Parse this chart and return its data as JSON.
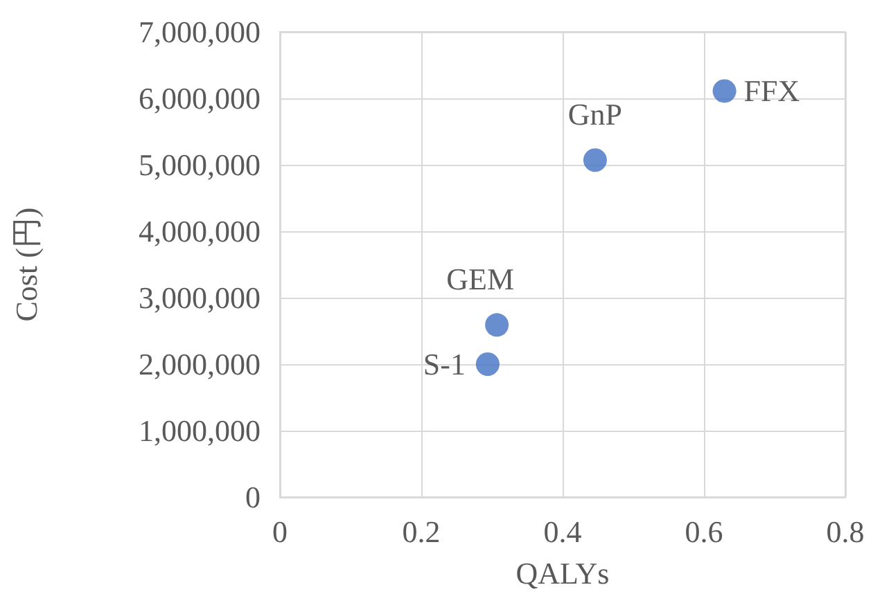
{
  "chart_data": {
    "type": "scatter",
    "xlabel": "QALYs",
    "ylabel": "Cost (円)",
    "x": [
      0.294,
      0.307,
      0.446,
      0.629
    ],
    "values": [
      2000000,
      2590000,
      5070000,
      6110000
    ],
    "color": "#4472c4",
    "xlim": [
      0,
      0.8
    ],
    "xticks": [
      0,
      0.2,
      0.4,
      0.6,
      0.8
    ],
    "ylim": [
      0,
      7000000
    ],
    "yticks": [
      0,
      {
        "value": 1000000,
        "label": "1,000,000"
      },
      {
        "value": 2000000,
        "label": "2,000,000"
      },
      {
        "value": 3000000,
        "label": "3,000,000"
      },
      {
        "value": 4000000,
        "label": "4,000,000"
      },
      {
        "value": 5000000,
        "label": "5,000,000"
      },
      {
        "value": 6000000,
        "label": "6,000,000"
      },
      {
        "value": 7000000,
        "label": "7,000,000"
      }
    ],
    "grid": true,
    "marker": "circle",
    "annotations": [
      {
        "text": "S-1",
        "x": 0.294,
        "y": 2000000
      },
      {
        "text": "GEM",
        "x": 0.307,
        "y": 2590000
      },
      {
        "text": "GnP",
        "x": 0.446,
        "y": 5070000
      },
      {
        "text": "FFX",
        "x": 0.629,
        "y": 6110000
      }
    ]
  }
}
